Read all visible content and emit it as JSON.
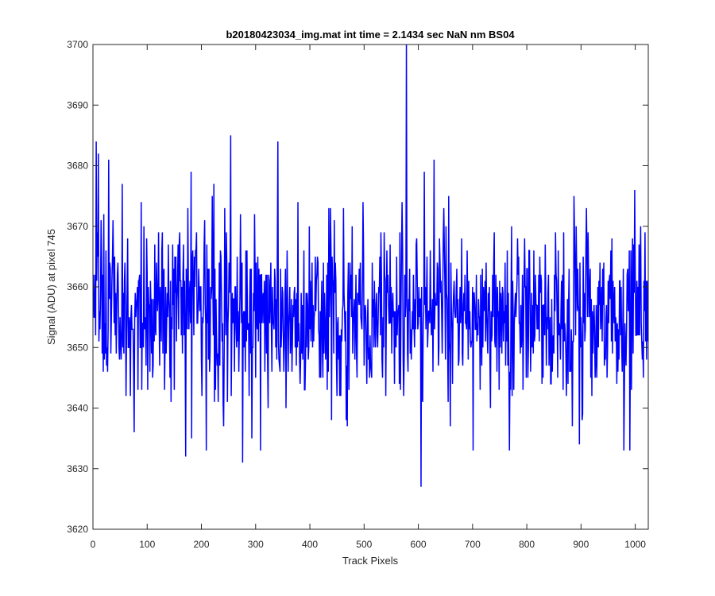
{
  "chart_data": {
    "type": "line",
    "title": "b20180423034_img.mat int time = 2.1434 sec  NaN nm BS04",
    "xlabel": "Track Pixels",
    "ylabel": "Signal (ADU) at pixel 745",
    "xlim": [
      0,
      1024
    ],
    "ylim": [
      3620,
      3700
    ],
    "xticks": [
      0,
      100,
      200,
      300,
      400,
      500,
      600,
      700,
      800,
      900,
      1000
    ],
    "yticks": [
      3620,
      3630,
      3640,
      3650,
      3660,
      3670,
      3680,
      3690,
      3700
    ],
    "grid": false,
    "legend": "none",
    "box": true,
    "series": [
      {
        "color": "#0000ff",
        "n_points": 1024,
        "mean": 3656,
        "std": 7.5,
        "seed": 20180423,
        "note_points": [
          {
            "x": 5,
            "y": 3684
          },
          {
            "x": 9,
            "y": 3682
          },
          {
            "x": 28,
            "y": 3681
          },
          {
            "x": 75,
            "y": 3636
          },
          {
            "x": 170,
            "y": 3632
          },
          {
            "x": 253,
            "y": 3685
          },
          {
            "x": 275,
            "y": 3631
          },
          {
            "x": 340,
            "y": 3684
          },
          {
            "x": 577,
            "y": 3700
          },
          {
            "x": 604,
            "y": 3627
          },
          {
            "x": 610,
            "y": 3679
          },
          {
            "x": 628,
            "y": 3681
          }
        ]
      }
    ]
  }
}
